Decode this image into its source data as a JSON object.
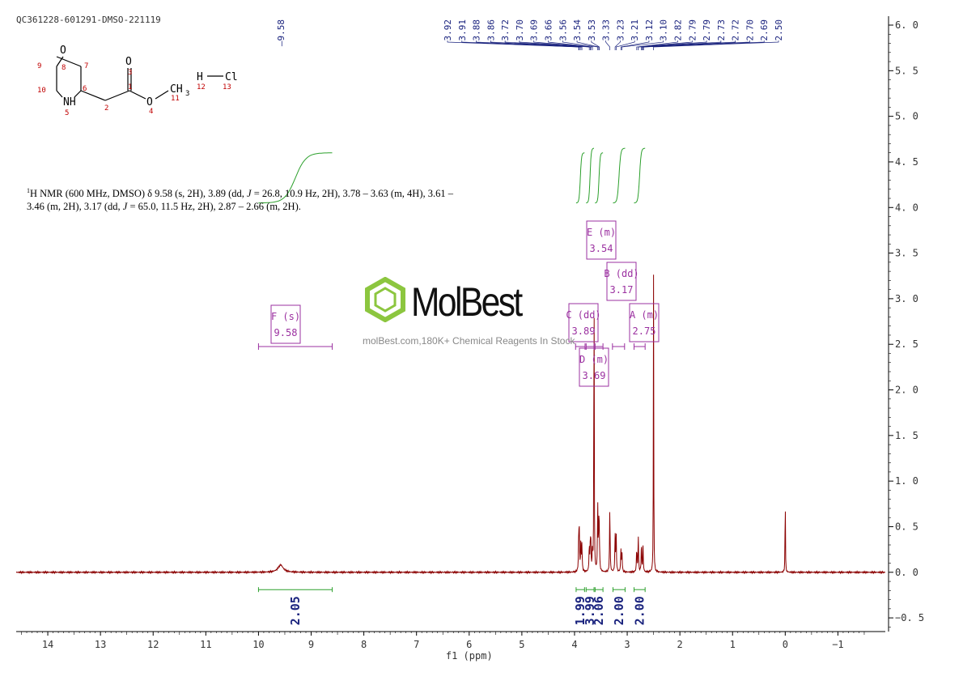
{
  "header": {
    "sample_id": "QC361228-601291-DMSO-221119"
  },
  "description": {
    "sup": "1",
    "line1_a": "H NMR (600 MHz, DMSO) δ 9.58 (s, 2H), 3.89 (dd, ",
    "J": "J",
    "line1_b": " = 26.8, 10.9 Hz, 2H), 3.78 – 3.63 (m, 4H), 3.61 –",
    "line2_a": "3.46 (m, 2H), 3.17 (dd, ",
    "line2_b": " = 65.0, 11.5 Hz, 2H), 2.87 – 2.66 (m, 2H)."
  },
  "watermark": {
    "brand": "MolBest",
    "tagline": "molBest.com,180K+ Chemical Reagents In Stock"
  },
  "structure": {
    "atoms": [
      "O",
      "NH",
      "O",
      "O",
      "CH",
      "3",
      "H",
      "Cl"
    ],
    "numbers": [
      "1",
      "2",
      "3",
      "4",
      "5",
      "6",
      "7",
      "8",
      "9",
      "10",
      "11",
      "12",
      "13"
    ]
  },
  "chart_data": {
    "type": "line",
    "title": "",
    "xlabel": "f1 (ppm)",
    "ylabel": "",
    "xlim": [
      14.6,
      -1.9
    ],
    "ylim": [
      -0.65,
      6.08
    ],
    "x_ticks": [
      "14",
      "13",
      "12",
      "11",
      "10",
      "9",
      "8",
      "7",
      "6",
      "5",
      "4",
      "3",
      "2",
      "1",
      "0",
      "−1"
    ],
    "x_tick_values": [
      14,
      13,
      12,
      11,
      10,
      9,
      8,
      7,
      6,
      5,
      4,
      3,
      2,
      1,
      0,
      -1
    ],
    "y_ticks": [
      "6. 0",
      "5. 5",
      "5. 0",
      "4. 5",
      "4. 0",
      "3. 5",
      "3. 0",
      "2. 5",
      "2. 0",
      "1. 5",
      "1. 0",
      "0. 5",
      "0. 0",
      "−0. 5"
    ],
    "y_tick_values": [
      6.0,
      5.5,
      5.0,
      4.5,
      4.0,
      3.5,
      3.0,
      2.5,
      2.0,
      1.5,
      1.0,
      0.5,
      0.0,
      -0.5
    ],
    "peak_labels": [
      "9.58",
      "3.92",
      "3.91",
      "3.88",
      "3.86",
      "3.72",
      "3.70",
      "3.69",
      "3.66",
      "3.56",
      "3.54",
      "3.53",
      "3.33",
      "3.23",
      "3.21",
      "3.12",
      "3.10",
      "2.82",
      "2.79",
      "2.79",
      "2.73",
      "2.72",
      "2.70",
      "2.69",
      "2.50"
    ],
    "peaks": [
      {
        "x": 9.58,
        "h": 0.08,
        "w": 0.06
      },
      {
        "x": 3.92,
        "h": 0.38,
        "w": 0.006
      },
      {
        "x": 3.91,
        "h": 0.4,
        "w": 0.006
      },
      {
        "x": 3.88,
        "h": 0.33,
        "w": 0.006
      },
      {
        "x": 3.86,
        "h": 0.3,
        "w": 0.006
      },
      {
        "x": 3.72,
        "h": 0.28,
        "w": 0.006
      },
      {
        "x": 3.7,
        "h": 0.32,
        "w": 0.006
      },
      {
        "x": 3.69,
        "h": 0.25,
        "w": 0.006
      },
      {
        "x": 3.66,
        "h": 0.22,
        "w": 0.006
      },
      {
        "x": 3.63,
        "h": 3.85,
        "w": 0.004
      },
      {
        "x": 3.56,
        "h": 0.72,
        "w": 0.006
      },
      {
        "x": 3.54,
        "h": 0.45,
        "w": 0.006
      },
      {
        "x": 3.53,
        "h": 0.4,
        "w": 0.006
      },
      {
        "x": 3.33,
        "h": 0.72,
        "w": 0.006
      },
      {
        "x": 3.23,
        "h": 0.4,
        "w": 0.006
      },
      {
        "x": 3.21,
        "h": 0.42,
        "w": 0.006
      },
      {
        "x": 3.12,
        "h": 0.25,
        "w": 0.006
      },
      {
        "x": 3.1,
        "h": 0.22,
        "w": 0.006
      },
      {
        "x": 2.82,
        "h": 0.26,
        "w": 0.006
      },
      {
        "x": 2.79,
        "h": 0.4,
        "w": 0.006
      },
      {
        "x": 2.73,
        "h": 0.32,
        "w": 0.006
      },
      {
        "x": 2.7,
        "h": 0.28,
        "w": 0.006
      },
      {
        "x": 2.5,
        "h": 3.26,
        "w": 0.004
      },
      {
        "x": 0.0,
        "h": 0.94,
        "w": 0.004
      }
    ],
    "multiplets": [
      {
        "letter": "F",
        "type": "(s)",
        "shift": "9.58",
        "range": [
          10.0,
          8.6
        ]
      },
      {
        "letter": "E",
        "type": "(m)",
        "shift": "3.54",
        "range": [
          3.61,
          3.46
        ]
      },
      {
        "letter": "B",
        "type": "(dd)",
        "shift": "3.17",
        "range": [
          3.28,
          3.05
        ]
      },
      {
        "letter": "C",
        "type": "(dd)",
        "shift": "3.89",
        "range": [
          3.98,
          3.8
        ]
      },
      {
        "letter": "A",
        "type": "(m)",
        "shift": "2.75",
        "range": [
          2.87,
          2.66
        ]
      },
      {
        "letter": "D",
        "type": "(m)",
        "shift": "3.69",
        "range": [
          3.78,
          3.63
        ]
      }
    ],
    "integrals": [
      {
        "label": "2.05",
        "range": [
          10.0,
          8.6
        ],
        "rise": 0.55
      },
      {
        "label": "1.99",
        "range": [
          3.97,
          3.81
        ],
        "rise": 0.55
      },
      {
        "label": "3.99",
        "range": [
          3.78,
          3.63
        ],
        "rise": 0.6
      },
      {
        "label": "2.06",
        "range": [
          3.61,
          3.46
        ],
        "rise": 0.55
      },
      {
        "label": "2.00",
        "range": [
          3.27,
          3.04
        ],
        "rise": 0.6
      },
      {
        "label": "2.00",
        "range": [
          2.87,
          2.66
        ],
        "rise": 0.6
      }
    ],
    "grid": false
  }
}
